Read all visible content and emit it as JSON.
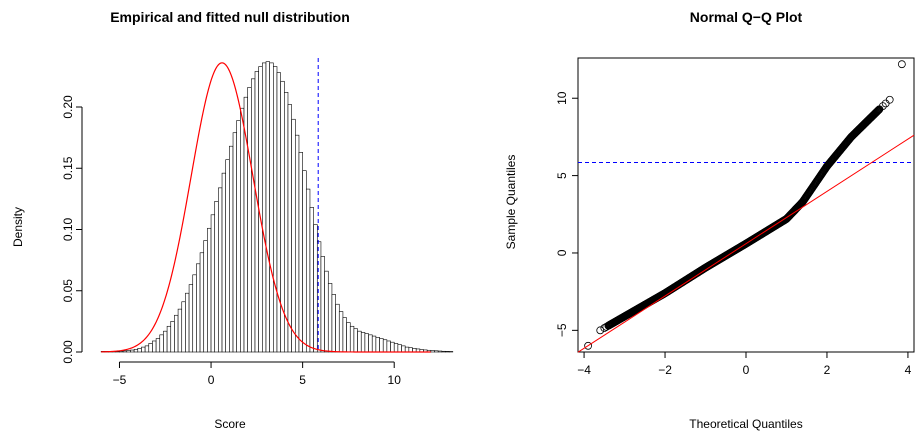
{
  "chart_data": [
    {
      "type": "histogram",
      "title": "Empirical and fitted null distribution",
      "xlabel": "Score",
      "ylabel": "Density",
      "xlim": [
        -6.5,
        12.5
      ],
      "ylim": [
        0,
        0.24
      ],
      "x_ticks": [
        -5,
        0,
        5,
        10
      ],
      "y_ticks": [
        0.0,
        0.05,
        0.1,
        0.15,
        0.2
      ],
      "y_tick_labels": [
        "0.00",
        "0.05",
        "0.10",
        "0.15",
        "0.20"
      ],
      "bins": {
        "start": -6.0,
        "width": 0.2,
        "density": [
          0.0005,
          0.0005,
          0.0005,
          0.0005,
          0.0005,
          0.0007,
          0.0009,
          0.0012,
          0.0016,
          0.0022,
          0.003,
          0.004,
          0.005,
          0.007,
          0.009,
          0.011,
          0.014,
          0.017,
          0.021,
          0.025,
          0.03,
          0.035,
          0.041,
          0.048,
          0.055,
          0.063,
          0.072,
          0.081,
          0.091,
          0.101,
          0.112,
          0.123,
          0.134,
          0.146,
          0.157,
          0.168,
          0.179,
          0.189,
          0.199,
          0.208,
          0.216,
          0.223,
          0.229,
          0.233,
          0.236,
          0.237,
          0.236,
          0.233,
          0.228,
          0.221,
          0.212,
          0.202,
          0.19,
          0.177,
          0.163,
          0.148,
          0.133,
          0.118,
          0.104,
          0.09,
          0.078,
          0.066,
          0.056,
          0.047,
          0.039,
          0.033,
          0.028,
          0.024,
          0.021,
          0.019,
          0.017,
          0.016,
          0.015,
          0.014,
          0.013,
          0.012,
          0.011,
          0.01,
          0.009,
          0.008,
          0.007,
          0.006,
          0.005,
          0.004,
          0.0035,
          0.003,
          0.0025,
          0.002,
          0.0017,
          0.0014,
          0.0012,
          0.001,
          0.0008,
          0.0006,
          0.0005,
          0.0004
        ]
      },
      "fitted_curve": {
        "type": "normal",
        "mean": 0.6,
        "sd": 1.69,
        "color": "#ff0000"
      },
      "vline": {
        "x": 5.85,
        "color": "#0000ff",
        "style": "dashed"
      },
      "bar_fill": "#ffffff",
      "bar_stroke": "#000000"
    },
    {
      "type": "scatter",
      "title": "Normal Q−Q Plot",
      "xlabel": "Theoretical Quantiles",
      "ylabel": "Sample Quantiles",
      "xlim": [
        -4.15,
        4.15
      ],
      "ylim": [
        -6.4,
        12.6
      ],
      "x_ticks": [
        -4,
        -2,
        0,
        2,
        4
      ],
      "x_tick_labels": [
        "−4",
        "−2",
        "0",
        "2",
        "4"
      ],
      "y_ticks": [
        -5,
        0,
        5,
        10
      ],
      "y_tick_labels": [
        "−5",
        "0",
        "5",
        "10"
      ],
      "qq_curve": [
        [
          -3.9,
          -6.0
        ],
        [
          -3.6,
          -5.0
        ],
        [
          -3.0,
          -4.1
        ],
        [
          -2.0,
          -2.6
        ],
        [
          -1.0,
          -0.95
        ],
        [
          0.0,
          0.6
        ],
        [
          1.0,
          2.2
        ],
        [
          1.4,
          3.3
        ],
        [
          2.0,
          5.6
        ],
        [
          2.6,
          7.5
        ],
        [
          3.3,
          9.3
        ],
        [
          3.55,
          9.9
        ],
        [
          3.85,
          12.2
        ]
      ],
      "qq_line": {
        "intercept": 0.6,
        "slope": 1.69,
        "color": "#ff0000"
      },
      "hline": {
        "y": 5.85,
        "color": "#0000ff",
        "style": "dashed"
      },
      "point_stroke": "#000000"
    }
  ]
}
